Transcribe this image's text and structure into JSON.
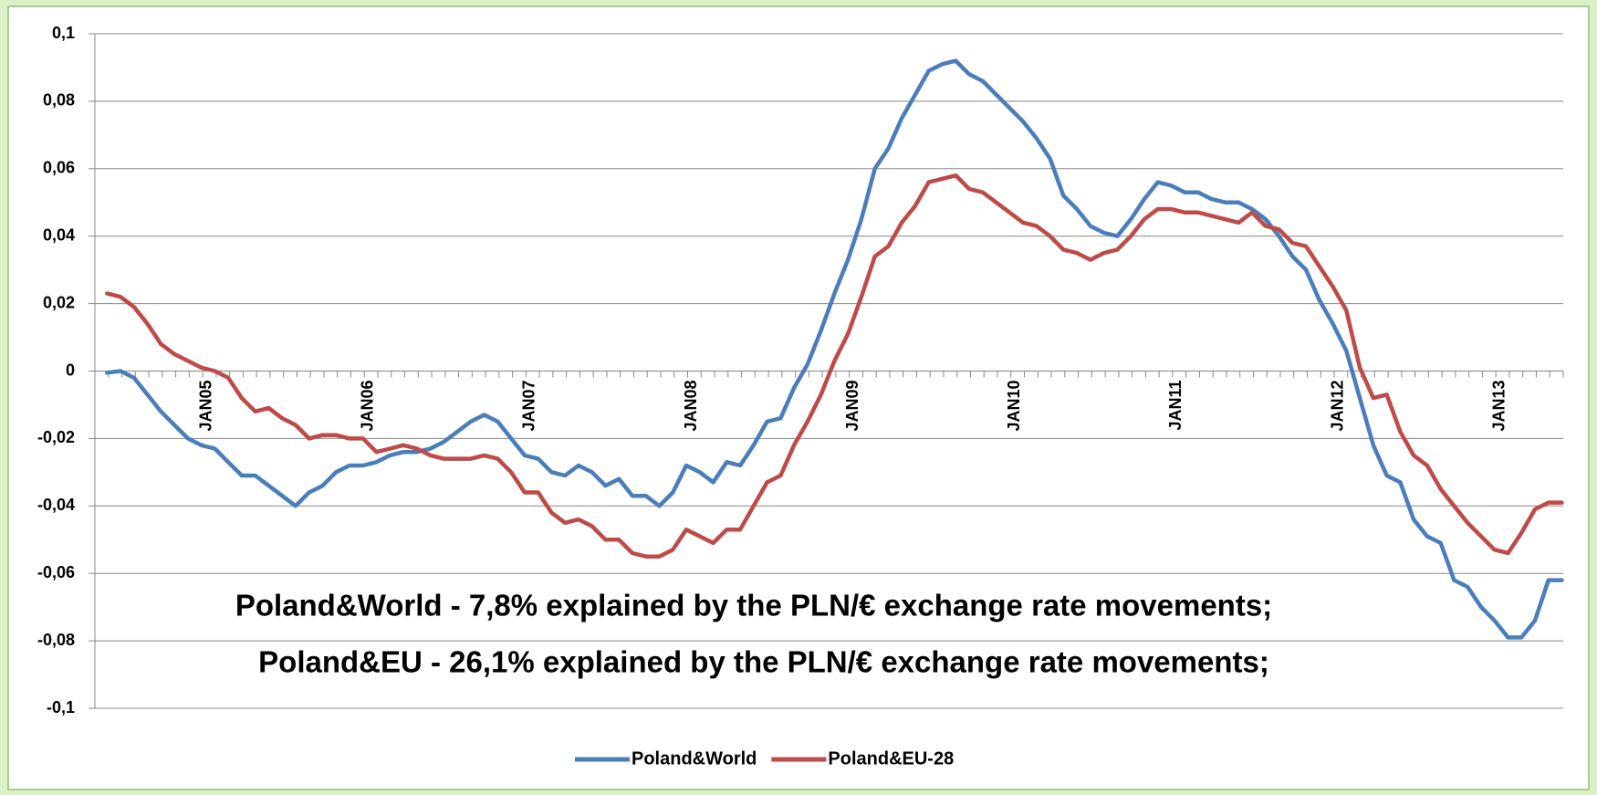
{
  "chart_data": {
    "type": "line",
    "annotations": [
      "Poland&World - 7,8% explained by the PLN/€ exchange rate movements;",
      "Poland&EU - 26,1% explained by the PLN/€ exchange rate movements;"
    ],
    "categories": [
      null,
      null,
      null,
      null,
      null,
      null,
      null,
      "JAN05",
      null,
      null,
      null,
      null,
      null,
      null,
      null,
      null,
      null,
      null,
      null,
      "JAN06",
      null,
      null,
      null,
      null,
      null,
      null,
      null,
      null,
      null,
      null,
      null,
      "JAN07",
      null,
      null,
      null,
      null,
      null,
      null,
      null,
      null,
      null,
      null,
      null,
      "JAN08",
      null,
      null,
      null,
      null,
      null,
      null,
      null,
      null,
      null,
      null,
      null,
      "JAN09",
      null,
      null,
      null,
      null,
      null,
      null,
      null,
      null,
      null,
      null,
      null,
      "JAN10",
      null,
      null,
      null,
      null,
      null,
      null,
      null,
      null,
      null,
      null,
      null,
      "JAN11",
      null,
      null,
      null,
      null,
      null,
      null,
      null,
      null,
      null,
      null,
      null,
      "JAN12",
      null,
      null,
      null,
      null,
      null,
      null,
      null,
      null,
      null,
      null,
      null,
      "JAN13",
      null,
      null,
      null,
      null,
      null
    ],
    "series": [
      {
        "name": "Poland&World",
        "color": "#4a7ebb",
        "values": [
          -0.0005,
          0,
          -0.002,
          -0.007,
          -0.012,
          -0.016,
          -0.02,
          -0.022,
          -0.023,
          -0.027,
          -0.031,
          -0.031,
          -0.034,
          -0.037,
          -0.04,
          -0.036,
          -0.034,
          -0.03,
          -0.028,
          -0.028,
          -0.027,
          -0.025,
          -0.024,
          -0.024,
          -0.023,
          -0.021,
          -0.018,
          -0.015,
          -0.013,
          -0.015,
          -0.02,
          -0.025,
          -0.026,
          -0.03,
          -0.031,
          -0.028,
          -0.03,
          -0.034,
          -0.032,
          -0.037,
          -0.037,
          -0.04,
          -0.036,
          -0.028,
          -0.03,
          -0.033,
          -0.027,
          -0.028,
          -0.022,
          -0.015,
          -0.014,
          -0.005,
          0.002,
          0.012,
          0.023,
          0.033,
          0.045,
          0.06,
          0.066,
          0.075,
          0.082,
          0.089,
          0.091,
          0.092,
          0.088,
          0.086,
          0.082,
          0.078,
          0.074,
          0.069,
          0.063,
          0.052,
          0.048,
          0.043,
          0.041,
          0.04,
          0.045,
          0.051,
          0.056,
          0.055,
          0.053,
          0.053,
          0.051,
          0.05,
          0.05,
          0.048,
          0.045,
          0.04,
          0.034,
          0.03,
          0.021,
          0.014,
          0.006,
          -0.008,
          -0.022,
          -0.031,
          -0.033,
          -0.044,
          -0.049,
          -0.051,
          -0.062,
          -0.064,
          -0.07,
          -0.074,
          -0.079,
          -0.079,
          -0.074,
          -0.062,
          -0.062
        ]
      },
      {
        "name": "Poland&EU-28",
        "color": "#be4b48",
        "values": [
          0.023,
          0.022,
          0.019,
          0.014,
          0.008,
          0.005,
          0.003,
          0.001,
          0,
          -0.002,
          -0.008,
          -0.012,
          -0.011,
          -0.014,
          -0.016,
          -0.02,
          -0.019,
          -0.019,
          -0.02,
          -0.02,
          -0.024,
          -0.023,
          -0.022,
          -0.023,
          -0.025,
          -0.026,
          -0.026,
          -0.026,
          -0.025,
          -0.026,
          -0.03,
          -0.036,
          -0.036,
          -0.042,
          -0.045,
          -0.044,
          -0.046,
          -0.05,
          -0.05,
          -0.054,
          -0.055,
          -0.055,
          -0.053,
          -0.047,
          -0.049,
          -0.051,
          -0.047,
          -0.047,
          -0.04,
          -0.033,
          -0.031,
          -0.022,
          -0.015,
          -0.007,
          0.003,
          0.011,
          0.022,
          0.034,
          0.037,
          0.044,
          0.049,
          0.056,
          0.057,
          0.058,
          0.054,
          0.053,
          0.05,
          0.047,
          0.044,
          0.043,
          0.04,
          0.036,
          0.035,
          0.033,
          0.035,
          0.036,
          0.04,
          0.045,
          0.048,
          0.048,
          0.047,
          0.047,
          0.046,
          0.045,
          0.044,
          0.047,
          0.043,
          0.042,
          0.038,
          0.037,
          0.031,
          0.025,
          0.018,
          0.001,
          -0.008,
          -0.007,
          -0.018,
          -0.025,
          -0.028,
          -0.035,
          -0.04,
          -0.045,
          -0.049,
          -0.053,
          -0.054,
          -0.048,
          -0.041,
          -0.039,
          -0.039
        ]
      }
    ],
    "ylim": [
      -0.1,
      0.1
    ],
    "yticks": [
      {
        "value": -0.1,
        "label": "-0,1"
      },
      {
        "value": -0.08,
        "label": "-0,08"
      },
      {
        "value": -0.06,
        "label": "-0,06"
      },
      {
        "value": -0.04,
        "label": "-0,04"
      },
      {
        "value": -0.02,
        "label": "-0,02"
      },
      0,
      {
        "value": 0.02,
        "label": "0,02"
      },
      {
        "value": 0.04,
        "label": "0,04"
      },
      {
        "value": 0.06,
        "label": "0,06"
      },
      {
        "value": 0.08,
        "label": "0,08"
      },
      {
        "value": 0.1,
        "label": "0,1"
      }
    ],
    "grid": true,
    "legend": "bottom"
  }
}
